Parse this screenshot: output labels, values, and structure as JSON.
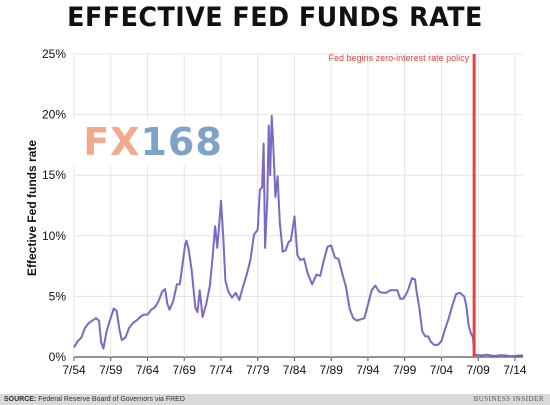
{
  "chart_data": {
    "type": "line",
    "title": "EFFECTIVE FED FUNDS RATE",
    "ylabel": "Effective Fed funds rate",
    "xlabel": "",
    "ylim": [
      0,
      25
    ],
    "y_ticks": [
      0,
      5,
      10,
      15,
      20,
      25
    ],
    "y_tick_labels": [
      "0%",
      "5%",
      "10%",
      "15%",
      "20%",
      "25%"
    ],
    "x_tick_labels": [
      "7/54",
      "7/59",
      "7/64",
      "7/69",
      "7/74",
      "7/79",
      "7/84",
      "7/89",
      "7/94",
      "7/99",
      "7/04",
      "7/09",
      "7/14"
    ],
    "x_tick_years": [
      1954.5,
      1959.5,
      1964.5,
      1969.5,
      1974.5,
      1979.5,
      1984.5,
      1989.5,
      1994.5,
      1999.5,
      2004.5,
      2009.5,
      2014.5
    ],
    "xlim": [
      1954.5,
      2015.6
    ],
    "grid": true,
    "line_color": "#7b68c8",
    "series": [
      {
        "name": "",
        "points": [
          [
            1954.5,
            0.8
          ],
          [
            1955.0,
            1.3
          ],
          [
            1955.5,
            1.6
          ],
          [
            1956.0,
            2.4
          ],
          [
            1956.5,
            2.8
          ],
          [
            1957.0,
            3.0
          ],
          [
            1957.5,
            3.2
          ],
          [
            1957.9,
            3.0
          ],
          [
            1958.2,
            1.2
          ],
          [
            1958.5,
            0.7
          ],
          [
            1958.9,
            2.0
          ],
          [
            1959.3,
            2.9
          ],
          [
            1959.7,
            3.6
          ],
          [
            1959.9,
            4.0
          ],
          [
            1960.3,
            3.8
          ],
          [
            1960.7,
            2.2
          ],
          [
            1961.0,
            1.4
          ],
          [
            1961.5,
            1.6
          ],
          [
            1962.0,
            2.4
          ],
          [
            1962.5,
            2.8
          ],
          [
            1963.0,
            3.0
          ],
          [
            1963.5,
            3.3
          ],
          [
            1964.0,
            3.5
          ],
          [
            1964.5,
            3.5
          ],
          [
            1965.0,
            3.9
          ],
          [
            1965.5,
            4.1
          ],
          [
            1966.0,
            4.6
          ],
          [
            1966.5,
            5.4
          ],
          [
            1966.9,
            5.6
          ],
          [
            1967.2,
            4.4
          ],
          [
            1967.5,
            3.9
          ],
          [
            1968.0,
            4.6
          ],
          [
            1968.5,
            6.0
          ],
          [
            1968.9,
            6.0
          ],
          [
            1969.3,
            7.8
          ],
          [
            1969.6,
            9.2
          ],
          [
            1969.8,
            9.6
          ],
          [
            1970.1,
            8.9
          ],
          [
            1970.5,
            7.2
          ],
          [
            1971.0,
            4.1
          ],
          [
            1971.3,
            3.7
          ],
          [
            1971.6,
            5.5
          ],
          [
            1972.0,
            3.3
          ],
          [
            1972.5,
            4.4
          ],
          [
            1973.0,
            5.9
          ],
          [
            1973.4,
            8.5
          ],
          [
            1973.7,
            10.8
          ],
          [
            1974.0,
            9.0
          ],
          [
            1974.5,
            12.9
          ],
          [
            1974.8,
            10.0
          ],
          [
            1975.1,
            6.3
          ],
          [
            1975.5,
            5.4
          ],
          [
            1976.0,
            4.9
          ],
          [
            1976.5,
            5.3
          ],
          [
            1977.0,
            4.7
          ],
          [
            1977.5,
            5.8
          ],
          [
            1978.0,
            6.8
          ],
          [
            1978.5,
            8.0
          ],
          [
            1979.0,
            10.1
          ],
          [
            1979.5,
            10.5
          ],
          [
            1979.8,
            13.8
          ],
          [
            1980.1,
            14.0
          ],
          [
            1980.3,
            17.6
          ],
          [
            1980.5,
            9.0
          ],
          [
            1980.8,
            13.0
          ],
          [
            1981.0,
            19.1
          ],
          [
            1981.2,
            15.0
          ],
          [
            1981.4,
            19.9
          ],
          [
            1981.6,
            17.8
          ],
          [
            1981.9,
            13.2
          ],
          [
            1982.2,
            14.9
          ],
          [
            1982.5,
            11.1
          ],
          [
            1982.9,
            8.7
          ],
          [
            1983.3,
            8.8
          ],
          [
            1983.7,
            9.5
          ],
          [
            1984.0,
            9.6
          ],
          [
            1984.5,
            11.6
          ],
          [
            1984.9,
            8.4
          ],
          [
            1985.3,
            8.0
          ],
          [
            1985.8,
            8.1
          ],
          [
            1986.3,
            6.9
          ],
          [
            1986.9,
            6.0
          ],
          [
            1987.5,
            6.8
          ],
          [
            1988.0,
            6.7
          ],
          [
            1988.5,
            8.0
          ],
          [
            1989.0,
            9.1
          ],
          [
            1989.5,
            9.2
          ],
          [
            1990.0,
            8.2
          ],
          [
            1990.5,
            8.1
          ],
          [
            1991.0,
            6.9
          ],
          [
            1991.5,
            5.8
          ],
          [
            1992.0,
            4.0
          ],
          [
            1992.5,
            3.2
          ],
          [
            1993.0,
            3.0
          ],
          [
            1993.5,
            3.1
          ],
          [
            1994.0,
            3.2
          ],
          [
            1994.5,
            4.3
          ],
          [
            1995.0,
            5.5
          ],
          [
            1995.5,
            5.9
          ],
          [
            1996.0,
            5.4
          ],
          [
            1996.5,
            5.3
          ],
          [
            1997.0,
            5.3
          ],
          [
            1997.5,
            5.5
          ],
          [
            1998.0,
            5.5
          ],
          [
            1998.5,
            5.5
          ],
          [
            1998.9,
            4.8
          ],
          [
            1999.3,
            4.8
          ],
          [
            1999.7,
            5.2
          ],
          [
            2000.0,
            5.6
          ],
          [
            2000.5,
            6.5
          ],
          [
            2000.9,
            6.4
          ],
          [
            2001.1,
            5.5
          ],
          [
            2001.5,
            4.0
          ],
          [
            2001.9,
            2.1
          ],
          [
            2002.3,
            1.7
          ],
          [
            2002.7,
            1.7
          ],
          [
            2003.0,
            1.3
          ],
          [
            2003.5,
            1.0
          ],
          [
            2004.0,
            1.0
          ],
          [
            2004.5,
            1.3
          ],
          [
            2005.0,
            2.3
          ],
          [
            2005.5,
            3.2
          ],
          [
            2006.0,
            4.3
          ],
          [
            2006.5,
            5.2
          ],
          [
            2007.0,
            5.3
          ],
          [
            2007.6,
            5.0
          ],
          [
            2007.9,
            4.2
          ],
          [
            2008.2,
            2.6
          ],
          [
            2008.5,
            2.0
          ],
          [
            2008.8,
            1.6
          ],
          [
            2008.95,
            0.2
          ],
          [
            2009.5,
            0.16
          ],
          [
            2010.0,
            0.12
          ],
          [
            2010.5,
            0.18
          ],
          [
            2011.0,
            0.16
          ],
          [
            2011.5,
            0.09
          ],
          [
            2012.0,
            0.1
          ],
          [
            2012.5,
            0.15
          ],
          [
            2013.0,
            0.14
          ],
          [
            2013.5,
            0.1
          ],
          [
            2014.0,
            0.07
          ],
          [
            2014.5,
            0.09
          ],
          [
            2015.0,
            0.12
          ],
          [
            2015.6,
            0.13
          ]
        ]
      }
    ],
    "annotations": [
      {
        "text": "Fed begins zero-interest rate policy",
        "x": 2008.95,
        "color": "#e8423f"
      }
    ]
  },
  "watermark": {
    "prefix": "FX",
    "suffix": "168"
  },
  "footer": {
    "source_label": "SOURCE:",
    "source_text": "Federal Reserve Board of Governors via FRED",
    "brand": "BUSINESS INSIDER"
  }
}
